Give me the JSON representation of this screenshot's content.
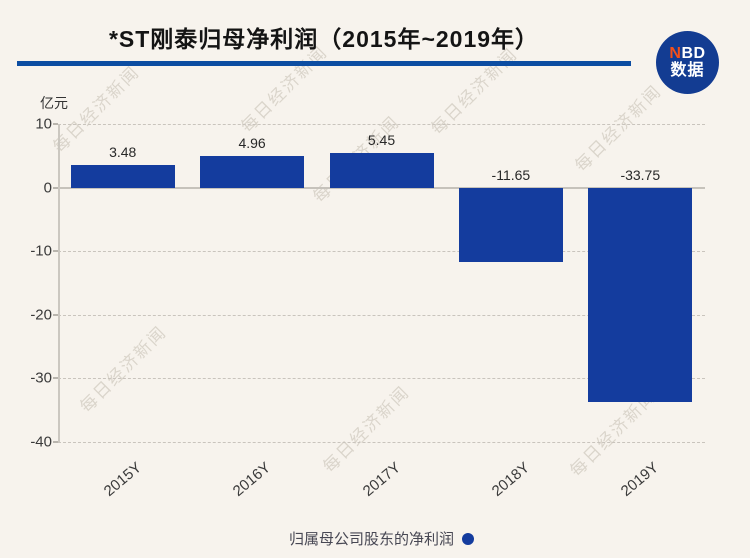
{
  "header": {
    "title": "*ST刚泰归母净利润（2015年~2019年）",
    "logo": {
      "n": "N",
      "bd": "BD",
      "line2": "数据"
    }
  },
  "chart_data": {
    "type": "bar",
    "title": "*ST刚泰归母净利润（2015年~2019年）",
    "unit_label": "亿元",
    "categories": [
      "2015Y",
      "2016Y",
      "2017Y",
      "2018Y",
      "2019Y"
    ],
    "values": [
      3.48,
      4.96,
      5.45,
      -11.65,
      -33.75
    ],
    "value_labels": [
      "3.48",
      "4.96",
      "5.45",
      "-11.65",
      "-33.75"
    ],
    "ylim": [
      -40,
      10
    ],
    "yticks": [
      10,
      0,
      -10,
      -20,
      -30,
      -40
    ],
    "grid": "horizontal-dashed",
    "bar_color": "#143c9e",
    "legend": {
      "label": "归属母公司股东的净利润",
      "position": "bottom"
    }
  },
  "watermark": {
    "text": "每日经济新闻"
  },
  "colors": {
    "background": "#f7f3ed",
    "bar": "#143c9e",
    "accent_line": "#0c4da2",
    "logo_circle": "#133c92",
    "logo_n": "#f4501a",
    "legend_dot": "#143c9e",
    "grid": "#c9c4bd",
    "axis": "#c6c2bb",
    "watermark_text": "#b9b1a4"
  }
}
